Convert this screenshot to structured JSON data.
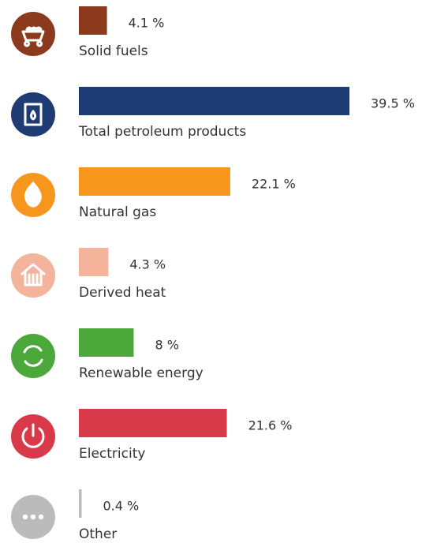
{
  "chart_data": {
    "type": "bar",
    "orientation": "horizontal",
    "categories": [
      "Solid fuels",
      "Total petroleum products",
      "Natural gas",
      "Derived heat",
      "Renewable energy",
      "Electricity",
      "Other"
    ],
    "values": [
      4.1,
      39.5,
      22.1,
      4.3,
      8,
      21.6,
      0.4
    ],
    "value_labels": [
      "4.1 %",
      "39.5 %",
      "22.1 %",
      "4.3 %",
      "8 %",
      "21.6 %",
      "0.4 %"
    ],
    "colors": [
      "#8b3a1e",
      "#1f3b73",
      "#f7961d",
      "#f4b49b",
      "#4ca83a",
      "#d93a4a",
      "#bbbbbb"
    ]
  }
}
